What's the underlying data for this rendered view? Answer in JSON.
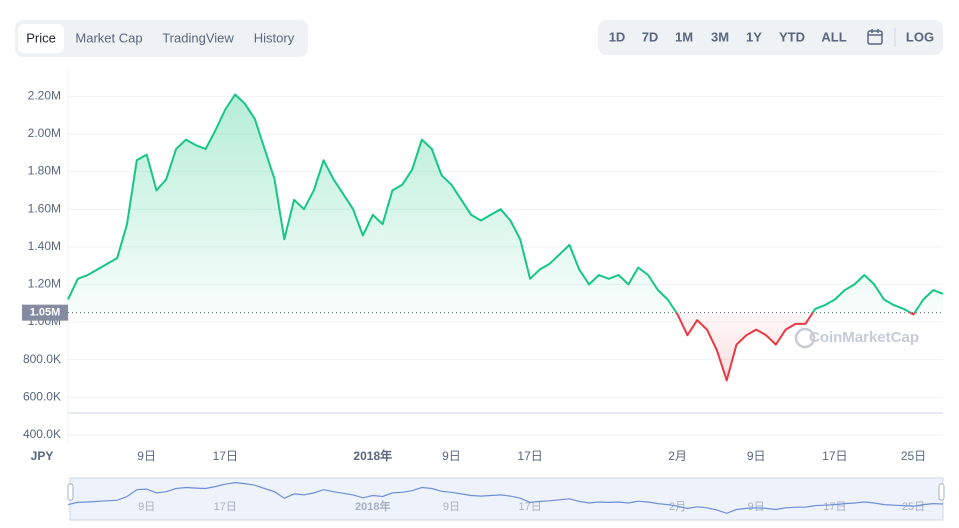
{
  "controls": {
    "tabs": [
      "Price",
      "Market Cap",
      "TradingView",
      "History"
    ],
    "active_tab": 0,
    "ranges": [
      "1D",
      "7D",
      "1M",
      "3M",
      "1Y",
      "YTD",
      "ALL"
    ],
    "log_label": "LOG"
  },
  "chart_data": {
    "type": "line",
    "currency": "JPY",
    "watermark": "CoinMarketCap",
    "categories": [
      null,
      null,
      null,
      null,
      null,
      null,
      null,
      null,
      "9日",
      null,
      null,
      null,
      null,
      null,
      null,
      null,
      "17日",
      null,
      null,
      null,
      null,
      null,
      null,
      null,
      null,
      null,
      null,
      null,
      null,
      null,
      null,
      "2018年",
      null,
      null,
      null,
      null,
      null,
      null,
      null,
      "9日",
      null,
      null,
      null,
      null,
      null,
      null,
      null,
      "17日",
      null,
      null,
      null,
      null,
      null,
      null,
      null,
      null,
      null,
      null,
      null,
      null,
      null,
      null,
      "2月",
      null,
      null,
      null,
      null,
      null,
      null,
      null,
      "9日",
      null,
      null,
      null,
      null,
      null,
      null,
      null,
      "17日",
      null,
      null,
      null,
      null,
      null,
      null,
      null,
      "25日",
      null,
      null,
      null
    ],
    "values": [
      1120000,
      1230000,
      1250000,
      1280000,
      1310000,
      1340000,
      1520000,
      1860000,
      1890000,
      1700000,
      1760000,
      1920000,
      1970000,
      1940000,
      1920000,
      2020000,
      2130000,
      2210000,
      2160000,
      2080000,
      1920000,
      1760000,
      1440000,
      1650000,
      1600000,
      1700000,
      1860000,
      1760000,
      1680000,
      1600000,
      1460000,
      1570000,
      1520000,
      1700000,
      1730000,
      1810000,
      1970000,
      1920000,
      1780000,
      1730000,
      1650000,
      1570000,
      1540000,
      1570000,
      1600000,
      1540000,
      1440000,
      1230000,
      1280000,
      1310000,
      1360000,
      1410000,
      1280000,
      1200000,
      1250000,
      1230000,
      1250000,
      1200000,
      1290000,
      1250000,
      1170000,
      1120000,
      1040000,
      930000,
      1010000,
      960000,
      850000,
      690000,
      880000,
      930000,
      960000,
      930000,
      880000,
      960000,
      990000,
      990000,
      1070000,
      1090000,
      1120000,
      1170000,
      1200000,
      1250000,
      1200000,
      1120000,
      1090000,
      1070000,
      1040000,
      1120000,
      1170000,
      1150000
    ],
    "baseline": 1050000,
    "baseline_label": "1.05M",
    "up_color": "#16c784",
    "down_color": "#ea3943",
    "ylim": [
      357000,
      2340000
    ],
    "yticks": [
      {
        "value": 400000,
        "label": "400.0K"
      },
      {
        "value": 600000,
        "label": "600.0K"
      },
      {
        "value": 800000,
        "label": "800.0K"
      },
      {
        "value": 1000000,
        "label": "1.00M"
      },
      {
        "value": 1200000,
        "label": "1.20M"
      },
      {
        "value": 1400000,
        "label": "1.40M"
      },
      {
        "value": 1600000,
        "label": "1.60M"
      },
      {
        "value": 1800000,
        "label": "1.80M"
      },
      {
        "value": 2000000,
        "label": "2.00M"
      },
      {
        "value": 2200000,
        "label": "2.20M"
      }
    ],
    "grid": true
  }
}
